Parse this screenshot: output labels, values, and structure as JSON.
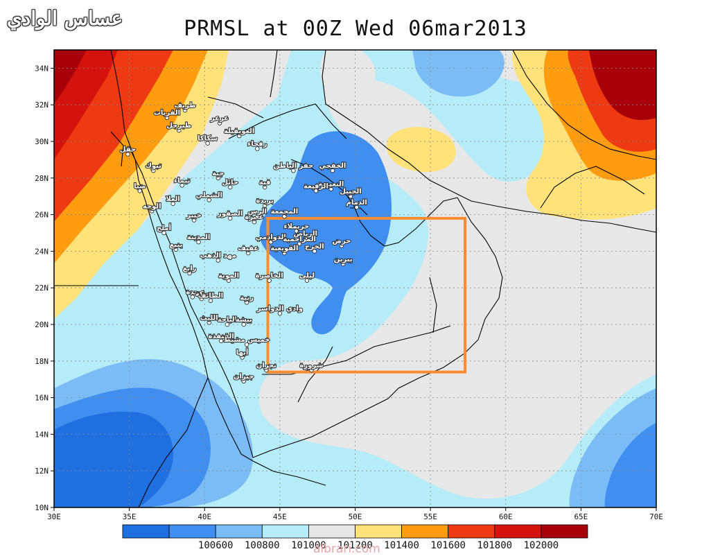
{
  "title": "PRMSL at 00Z Wed 06mar2013",
  "logo_text": "عساس الوادي",
  "watermark": "albrari.com",
  "map": {
    "lon_range": [
      30,
      70
    ],
    "lat_range": [
      10,
      35
    ],
    "lon_ticks": [
      "30E",
      "35E",
      "40E",
      "45E",
      "50E",
      "55E",
      "60E",
      "65E",
      "70E"
    ],
    "lat_ticks": [
      "10N",
      "12N",
      "14N",
      "16N",
      "18N",
      "20N",
      "22N",
      "24N",
      "26N",
      "28N",
      "30N",
      "32N",
      "34N"
    ],
    "highlight_box": {
      "lon": [
        44.2,
        57.3
      ],
      "lat": [
        17.4,
        25.8
      ],
      "color": "#ff8c2e"
    },
    "cities": [
      {
        "name": "القريات",
        "lon": 37.5,
        "lat": 31.3
      },
      {
        "name": "طبرجل",
        "lon": 38.3,
        "lat": 30.6
      },
      {
        "name": "طريف",
        "lon": 38.7,
        "lat": 31.7
      },
      {
        "name": "عرعر",
        "lon": 41.0,
        "lat": 31.0
      },
      {
        "name": "سكاكا",
        "lon": 40.2,
        "lat": 29.9
      },
      {
        "name": "العويقيلة",
        "lon": 42.3,
        "lat": 30.3
      },
      {
        "name": "رفحاء",
        "lon": 43.5,
        "lat": 29.6
      },
      {
        "name": "حقل",
        "lon": 34.9,
        "lat": 29.3
      },
      {
        "name": "تبوك",
        "lon": 36.6,
        "lat": 28.4
      },
      {
        "name": "جبة",
        "lon": 40.9,
        "lat": 28.0
      },
      {
        "name": "حائل",
        "lon": 41.7,
        "lat": 27.5
      },
      {
        "name": "تيماء",
        "lon": 38.5,
        "lat": 27.6
      },
      {
        "name": "ضبا",
        "lon": 35.7,
        "lat": 27.3
      },
      {
        "name": "الشملي",
        "lon": 40.3,
        "lat": 26.8
      },
      {
        "name": "العلا",
        "lon": 37.9,
        "lat": 26.6
      },
      {
        "name": "الوجه",
        "lon": 36.5,
        "lat": 26.2
      },
      {
        "name": "خيبر",
        "lon": 39.3,
        "lat": 25.7
      },
      {
        "name": "الصقور",
        "lon": 41.7,
        "lat": 25.8
      },
      {
        "name": "عنيزة",
        "lon": 43.3,
        "lat": 25.6
      },
      {
        "name": "قبة",
        "lon": 44.0,
        "lat": 27.5
      },
      {
        "name": "بريدة",
        "lon": 44.0,
        "lat": 26.5
      },
      {
        "name": "الرس",
        "lon": 43.5,
        "lat": 25.9
      },
      {
        "name": "حفر الباطن",
        "lon": 45.9,
        "lat": 28.4
      },
      {
        "name": "الخفجي",
        "lon": 48.5,
        "lat": 28.4
      },
      {
        "name": "النعيرية",
        "lon": 48.4,
        "lat": 27.4
      },
      {
        "name": "الرفيعة",
        "lon": 47.4,
        "lat": 27.3
      },
      {
        "name": "الجبيل",
        "lon": 49.7,
        "lat": 27.0
      },
      {
        "name": "الدمام",
        "lon": 50.1,
        "lat": 26.4
      },
      {
        "name": "المجمعة",
        "lon": 45.3,
        "lat": 25.9
      },
      {
        "name": "حريملاء",
        "lon": 46.1,
        "lat": 25.1
      },
      {
        "name": "الرياض",
        "lon": 46.7,
        "lat": 24.7
      },
      {
        "name": "الدوادمي",
        "lon": 44.4,
        "lat": 24.5
      },
      {
        "name": "حرض",
        "lon": 49.1,
        "lat": 24.3
      },
      {
        "name": "المزاحمية",
        "lon": 46.3,
        "lat": 24.4
      },
      {
        "name": "الخرج",
        "lon": 47.3,
        "lat": 24.0
      },
      {
        "name": "يبرين",
        "lon": 49.2,
        "lat": 23.3
      },
      {
        "name": "القويعية",
        "lon": 45.3,
        "lat": 23.9
      },
      {
        "name": "ليلى",
        "lon": 46.8,
        "lat": 22.4
      },
      {
        "name": "الخاصرة",
        "lon": 44.3,
        "lat": 22.4
      },
      {
        "name": "وادي الدواسر",
        "lon": 45.0,
        "lat": 20.6
      },
      {
        "name": "ينبع",
        "lon": 38.1,
        "lat": 24.1
      },
      {
        "name": "أملج",
        "lon": 37.3,
        "lat": 25.0
      },
      {
        "name": "المدينة",
        "lon": 39.6,
        "lat": 24.5
      },
      {
        "name": "مهد الذهب",
        "lon": 40.9,
        "lat": 23.5
      },
      {
        "name": "عفيف",
        "lon": 42.9,
        "lat": 23.9
      },
      {
        "name": "رابغ",
        "lon": 39.0,
        "lat": 22.8
      },
      {
        "name": "الموية",
        "lon": 41.6,
        "lat": 22.4
      },
      {
        "name": "جدة",
        "lon": 39.2,
        "lat": 21.5
      },
      {
        "name": "مكة",
        "lon": 39.8,
        "lat": 21.4
      },
      {
        "name": "الطائف",
        "lon": 40.4,
        "lat": 21.3
      },
      {
        "name": "رنية",
        "lon": 42.8,
        "lat": 21.2
      },
      {
        "name": "الباحة",
        "lon": 41.5,
        "lat": 20.0
      },
      {
        "name": "بيشة",
        "lon": 42.6,
        "lat": 20.0
      },
      {
        "name": "الليث",
        "lon": 40.3,
        "lat": 20.1
      },
      {
        "name": "القنفذة",
        "lon": 41.1,
        "lat": 19.1
      },
      {
        "name": "خميس مشيط",
        "lon": 42.8,
        "lat": 18.9
      },
      {
        "name": "أبها",
        "lon": 42.5,
        "lat": 18.2
      },
      {
        "name": "نجران",
        "lon": 44.1,
        "lat": 17.5
      },
      {
        "name": "شرورة",
        "lon": 47.1,
        "lat": 17.5
      },
      {
        "name": "جيزان",
        "lon": 42.6,
        "lat": 16.9
      }
    ]
  },
  "colorbar": {
    "colors": [
      "#1f6fe0",
      "#3f8ef0",
      "#7bbcf7",
      "#b6ecf7",
      "#e7e7e7",
      "#ffe27a",
      "#ff9c10",
      "#ee3a12",
      "#d4130f",
      "#a8000a"
    ],
    "labels": [
      "100600",
      "100800",
      "101000",
      "101200",
      "101400",
      "101600",
      "101800",
      "102000"
    ]
  }
}
